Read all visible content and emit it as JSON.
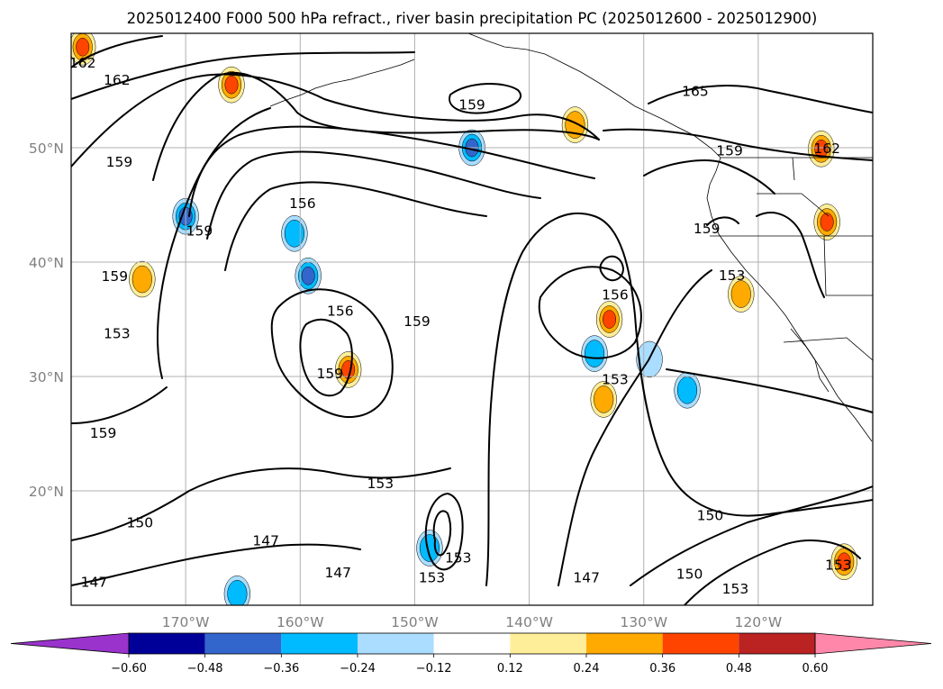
{
  "chart_data": {
    "type": "contour-map",
    "title": "2025012400 F000 500 hPa refract., river basin precipitation PC (2025012600 - 2025012900)",
    "x_ticks": [
      "170°W",
      "160°W",
      "150°W",
      "140°W",
      "130°W",
      "120°W"
    ],
    "x_tick_values": [
      -170,
      -160,
      -150,
      -140,
      -130,
      -120
    ],
    "y_ticks": [
      "20°N",
      "30°N",
      "40°N",
      "50°N"
    ],
    "y_tick_values": [
      20,
      30,
      40,
      50
    ],
    "xlim": [
      -180,
      -110
    ],
    "ylim": [
      10,
      60
    ],
    "grid": true,
    "contour_labels": [
      {
        "text": "162",
        "lon": -179,
        "lat": 57.5
      },
      {
        "text": "162",
        "lon": -176,
        "lat": 56
      },
      {
        "text": "165",
        "lon": -125.5,
        "lat": 55
      },
      {
        "text": "162",
        "lon": -114,
        "lat": 50
      },
      {
        "text": "159",
        "lon": -145,
        "lat": 53.8
      },
      {
        "text": "159",
        "lon": -122.5,
        "lat": 49.8
      },
      {
        "text": "159",
        "lon": -175.8,
        "lat": 48.8
      },
      {
        "text": "156",
        "lon": -159.8,
        "lat": 45.2
      },
      {
        "text": "159",
        "lon": -168.8,
        "lat": 42.8
      },
      {
        "text": "159",
        "lon": -124.5,
        "lat": 43
      },
      {
        "text": "159",
        "lon": -176.2,
        "lat": 38.8
      },
      {
        "text": "156",
        "lon": -156.5,
        "lat": 35.8
      },
      {
        "text": "156",
        "lon": -132.5,
        "lat": 37.2
      },
      {
        "text": "153",
        "lon": -122.3,
        "lat": 38.9
      },
      {
        "text": "153",
        "lon": -176,
        "lat": 33.8
      },
      {
        "text": "159",
        "lon": -149.8,
        "lat": 34.9
      },
      {
        "text": "159",
        "lon": -157.4,
        "lat": 30.3
      },
      {
        "text": "153",
        "lon": -132.5,
        "lat": 29.8
      },
      {
        "text": "159",
        "lon": -177.2,
        "lat": 25.1
      },
      {
        "text": "153",
        "lon": -153,
        "lat": 20.7
      },
      {
        "text": "150",
        "lon": -174,
        "lat": 17.3
      },
      {
        "text": "150",
        "lon": -124.2,
        "lat": 17.9
      },
      {
        "text": "147",
        "lon": -163,
        "lat": 15.7
      },
      {
        "text": "153",
        "lon": -146.2,
        "lat": 14.2
      },
      {
        "text": "147",
        "lon": -156.7,
        "lat": 12.9
      },
      {
        "text": "153",
        "lon": -148.5,
        "lat": 12.5
      },
      {
        "text": "147",
        "lon": -135,
        "lat": 12.5
      },
      {
        "text": "150",
        "lon": -126,
        "lat": 12.8
      },
      {
        "text": "153",
        "lon": -122,
        "lat": 11.5
      },
      {
        "text": "153",
        "lon": -113,
        "lat": 13.6
      },
      {
        "text": "147",
        "lon": -178,
        "lat": 12.1
      }
    ],
    "colorbar": {
      "levels": [
        "-0.60",
        "-0.48",
        "-0.36",
        "-0.24",
        "-0.12",
        "0.12",
        "0.24",
        "0.36",
        "0.48",
        "0.60"
      ],
      "colors": [
        "#9933cc",
        "#000099",
        "#3366cc",
        "#00bbff",
        "#aaddff",
        "#ffffff",
        "#ffee99",
        "#ffaa00",
        "#ff4400",
        "#bb2222",
        "#ff88aa"
      ],
      "extend": "both"
    },
    "shaded_blobs": [
      {
        "lon": -145,
        "lat": 50,
        "value": -0.45
      },
      {
        "lon": -170,
        "lat": 44,
        "value": -0.36
      },
      {
        "lon": -160.5,
        "lat": 42.5,
        "value": -0.3
      },
      {
        "lon": -159.3,
        "lat": 38.8,
        "value": -0.36
      },
      {
        "lon": -134.3,
        "lat": 32,
        "value": -0.3
      },
      {
        "lon": -129.5,
        "lat": 31.5,
        "value": -0.2
      },
      {
        "lon": -126.2,
        "lat": 28.8,
        "value": -0.24
      },
      {
        "lon": -148.7,
        "lat": 15,
        "value": -0.26
      },
      {
        "lon": -165.5,
        "lat": 11,
        "value": -0.3
      },
      {
        "lon": -179,
        "lat": 58.8,
        "value": 0.36
      },
      {
        "lon": -155.8,
        "lat": 30.6,
        "value": 0.4
      },
      {
        "lon": -133,
        "lat": 35,
        "value": 0.4
      },
      {
        "lon": -133.5,
        "lat": 28,
        "value": 0.35
      },
      {
        "lon": -114.5,
        "lat": 49.9,
        "value": 0.4
      },
      {
        "lon": -114,
        "lat": 43.5,
        "value": 0.38
      },
      {
        "lon": -173.8,
        "lat": 38.5,
        "value": 0.28
      },
      {
        "lon": -166,
        "lat": 55.5,
        "value": 0.38
      },
      {
        "lon": -121.5,
        "lat": 37.2,
        "value": 0.28
      },
      {
        "lon": -112.5,
        "lat": 13.8,
        "value": 0.45
      },
      {
        "lon": -136,
        "lat": 52,
        "value": 0.28
      }
    ]
  }
}
